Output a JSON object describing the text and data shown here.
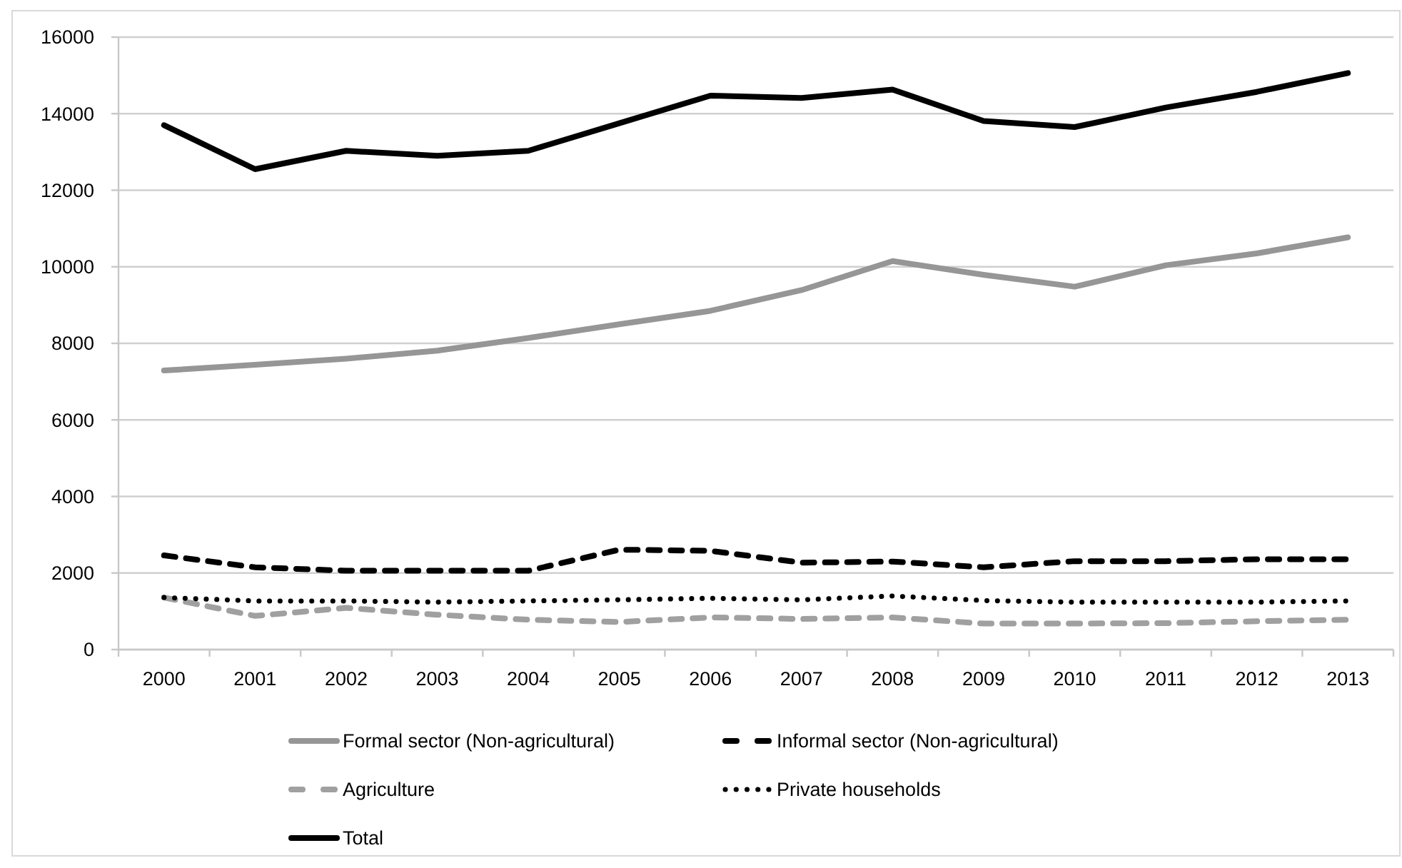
{
  "chart_data": {
    "type": "line",
    "categories": [
      "2000",
      "2001",
      "2002",
      "2003",
      "2004",
      "2005",
      "2006",
      "2007",
      "2008",
      "2009",
      "2010",
      "2011",
      "2012",
      "2013"
    ],
    "series": [
      {
        "name": "Formal sector (Non-agricultural)",
        "color": "#969696",
        "line_style": "solid",
        "values": [
          7290,
          7440,
          7600,
          7810,
          8140,
          8500,
          8850,
          9390,
          10150,
          9790,
          9480,
          10040,
          10350,
          10770
        ]
      },
      {
        "name": "Informal sector (Non-agricultural)",
        "color": "#000000",
        "line_style": "dashed",
        "values": [
          2460,
          2150,
          2060,
          2060,
          2060,
          2610,
          2580,
          2270,
          2300,
          2150,
          2310,
          2310,
          2360,
          2360
        ]
      },
      {
        "name": "Agriculture",
        "color": "#a0a0a0",
        "line_style": "dashed",
        "values": [
          1360,
          880,
          1090,
          910,
          780,
          720,
          840,
          800,
          840,
          680,
          680,
          690,
          740,
          780
        ]
      },
      {
        "name": "Private households",
        "color": "#000000",
        "line_style": "dotted",
        "values": [
          1360,
          1270,
          1270,
          1240,
          1270,
          1300,
          1340,
          1300,
          1400,
          1280,
          1240,
          1240,
          1240,
          1270
        ]
      },
      {
        "name": "Total",
        "color": "#000000",
        "line_style": "solid",
        "values": [
          13700,
          12550,
          13030,
          12900,
          13030,
          13750,
          14470,
          14410,
          14630,
          13810,
          13650,
          14160,
          14570,
          15060
        ]
      }
    ],
    "ylim": [
      0,
      16000
    ],
    "yticks": [
      0,
      2000,
      4000,
      6000,
      8000,
      10000,
      12000,
      14000,
      16000
    ],
    "grid": "y",
    "legend": "bottom"
  }
}
